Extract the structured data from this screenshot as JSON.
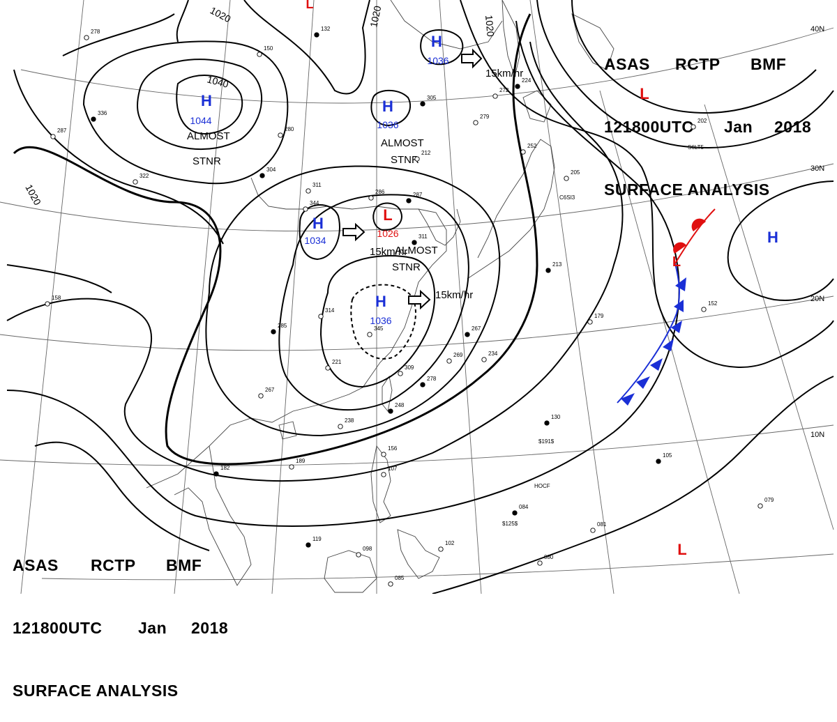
{
  "header": {
    "top_right": {
      "line1": [
        "ASAS",
        "RCTP",
        "BMF"
      ],
      "line2": [
        "121800UTC",
        "Jan",
        "2018"
      ],
      "line3": "SURFACE ANALYSIS"
    },
    "bottom_left": {
      "line1": [
        "ASAS",
        "RCTP",
        "BMF"
      ],
      "line2": [
        "121800UTC",
        "Jan",
        "2018"
      ],
      "line3": "SURFACE ANALYSIS"
    }
  },
  "latitude_labels": [
    "40N",
    "30N",
    "20N",
    "10N"
  ],
  "isobar_labels": [
    "1020",
    "1020",
    "1020",
    "1040",
    "1020"
  ],
  "pressure_centers": [
    {
      "type": "H",
      "value": "1044",
      "color": "#1a2fd6"
    },
    {
      "type": "H",
      "value": "1036",
      "color": "#1a2fd6"
    },
    {
      "type": "H",
      "value": "1036",
      "color": "#1a2fd6"
    },
    {
      "type": "H",
      "value": "1034",
      "color": "#1a2fd6"
    },
    {
      "type": "H",
      "value": "1036",
      "color": "#1a2fd6"
    },
    {
      "type": "L",
      "value": "1026",
      "color": "#e01010"
    },
    {
      "type": "L",
      "value": "",
      "color": "#e01010"
    },
    {
      "type": "L",
      "value": "",
      "color": "#e01010"
    },
    {
      "type": "L",
      "value": "",
      "color": "#e01010"
    },
    {
      "type": "H",
      "value": "",
      "color": "#1a2fd6"
    }
  ],
  "motion_labels": [
    "ALMOST STNR",
    "ALMOST STNR",
    "ALMOST STNR",
    "15km/hr",
    "15km/hr",
    "15km/hr"
  ],
  "station_labels": [
    "336",
    "287",
    "322",
    "304",
    "311",
    "286",
    "287",
    "280",
    "279",
    "305",
    "252",
    "205",
    "213",
    "179",
    "152",
    "267",
    "234",
    "269",
    "278",
    "309",
    "221",
    "248",
    "238",
    "189",
    "182",
    "156",
    "107",
    "119",
    "098",
    "102",
    "084",
    "081",
    "079",
    "105",
    "080",
    "085",
    "130",
    "314",
    "345",
    "285",
    "267",
    "158",
    "224",
    "272",
    "150",
    "132",
    "278",
    "202",
    "311",
    "212",
    "344"
  ],
  "ship_labels": [
    "C6SI3",
    "S6LT5",
    "HOCF",
    "$125$",
    "$191$"
  ],
  "colors": {
    "high": "#1a2fd6",
    "low": "#e01010",
    "front_warm": "#e01010",
    "front_cold": "#1a2fd6",
    "ink": "#000000"
  }
}
